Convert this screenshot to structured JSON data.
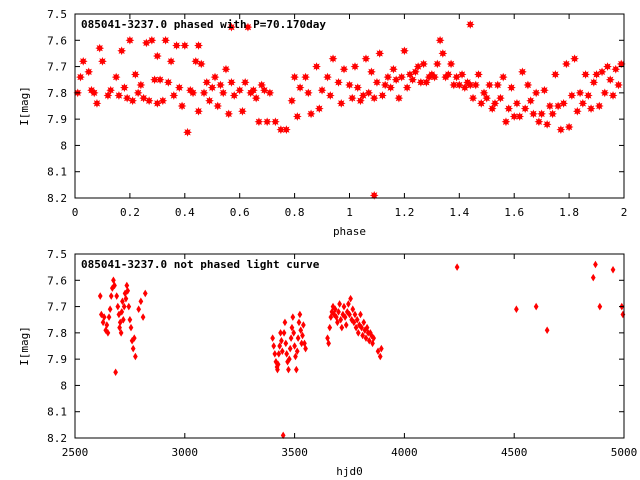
{
  "chart_data": [
    {
      "type": "scatter",
      "title": "085041-3237.0 phased with P=70.170day",
      "xlabel": "phase",
      "ylabel": "I[mag]",
      "xlim": [
        0,
        2
      ],
      "ylim": [
        8.2,
        7.5
      ],
      "y_inverted": true,
      "grid": false,
      "marker_color": "#ff0000",
      "marker": "star",
      "x_ticks": [
        "0",
        "0.2",
        "0.4",
        "0.6",
        "0.8",
        "1",
        "1.2",
        "1.4",
        "1.6",
        "1.8",
        "2"
      ],
      "y_ticks": [
        "7.5",
        "7.6",
        "7.7",
        "7.8",
        "7.9",
        "8",
        "8.1",
        "8.2"
      ],
      "points": [
        [
          0.01,
          7.8
        ],
        [
          0.02,
          7.74
        ],
        [
          0.03,
          7.68
        ],
        [
          0.05,
          7.72
        ],
        [
          0.06,
          7.79
        ],
        [
          0.07,
          7.8
        ],
        [
          0.08,
          7.84
        ],
        [
          0.09,
          7.63
        ],
        [
          0.1,
          7.68
        ],
        [
          0.12,
          7.81
        ],
        [
          0.13,
          7.79
        ],
        [
          0.15,
          7.74
        ],
        [
          0.16,
          7.81
        ],
        [
          0.17,
          7.64
        ],
        [
          0.18,
          7.78
        ],
        [
          0.19,
          7.82
        ],
        [
          0.2,
          7.6
        ],
        [
          0.21,
          7.83
        ],
        [
          0.22,
          7.73
        ],
        [
          0.23,
          7.8
        ],
        [
          0.24,
          7.77
        ],
        [
          0.25,
          7.82
        ],
        [
          0.26,
          7.61
        ],
        [
          0.27,
          7.83
        ],
        [
          0.28,
          7.6
        ],
        [
          0.29,
          7.75
        ],
        [
          0.3,
          7.84
        ],
        [
          0.3,
          7.66
        ],
        [
          0.31,
          7.75
        ],
        [
          0.32,
          7.83
        ],
        [
          0.33,
          7.6
        ],
        [
          0.34,
          7.76
        ],
        [
          0.35,
          7.68
        ],
        [
          0.36,
          7.81
        ],
        [
          0.37,
          7.62
        ],
        [
          0.38,
          7.78
        ],
        [
          0.39,
          7.85
        ],
        [
          0.4,
          7.62
        ],
        [
          0.41,
          7.95
        ],
        [
          0.42,
          7.79
        ],
        [
          0.43,
          7.8
        ],
        [
          0.44,
          7.68
        ],
        [
          0.45,
          7.87
        ],
        [
          0.45,
          7.62
        ],
        [
          0.46,
          7.69
        ],
        [
          0.47,
          7.8
        ],
        [
          0.48,
          7.76
        ],
        [
          0.49,
          7.83
        ],
        [
          0.5,
          7.78
        ],
        [
          0.51,
          7.74
        ],
        [
          0.52,
          7.85
        ],
        [
          0.53,
          7.77
        ],
        [
          0.54,
          7.8
        ],
        [
          0.55,
          7.71
        ],
        [
          0.56,
          7.88
        ],
        [
          0.57,
          7.76
        ],
        [
          0.57,
          7.55
        ],
        [
          0.58,
          7.81
        ],
        [
          0.6,
          7.79
        ],
        [
          0.61,
          7.87
        ],
        [
          0.62,
          7.76
        ],
        [
          0.63,
          7.55
        ],
        [
          0.64,
          7.8
        ],
        [
          0.65,
          7.79
        ],
        [
          0.66,
          7.82
        ],
        [
          0.67,
          7.91
        ],
        [
          0.68,
          7.77
        ],
        [
          0.69,
          7.79
        ],
        [
          0.7,
          7.91
        ],
        [
          0.71,
          7.8
        ],
        [
          0.73,
          7.91
        ],
        [
          0.75,
          7.94
        ],
        [
          0.77,
          7.94
        ],
        [
          0.79,
          7.83
        ],
        [
          0.8,
          7.74
        ],
        [
          0.81,
          7.89
        ],
        [
          0.82,
          7.78
        ],
        [
          0.84,
          7.74
        ],
        [
          0.85,
          7.8
        ],
        [
          0.86,
          7.88
        ],
        [
          0.88,
          7.7
        ],
        [
          0.89,
          7.86
        ],
        [
          0.9,
          7.79
        ],
        [
          0.92,
          7.74
        ],
        [
          0.93,
          7.81
        ],
        [
          0.94,
          7.67
        ],
        [
          0.96,
          7.76
        ],
        [
          0.97,
          7.84
        ],
        [
          0.98,
          7.71
        ],
        [
          1.0,
          7.77
        ],
        [
          1.01,
          7.82
        ],
        [
          1.02,
          7.7
        ],
        [
          1.03,
          7.78
        ],
        [
          1.04,
          7.83
        ],
        [
          1.05,
          7.81
        ],
        [
          1.06,
          7.67
        ],
        [
          1.07,
          7.8
        ],
        [
          1.08,
          7.72
        ],
        [
          1.09,
          7.82
        ],
        [
          1.09,
          8.19
        ],
        [
          1.1,
          7.76
        ],
        [
          1.11,
          7.65
        ],
        [
          1.12,
          7.81
        ],
        [
          1.13,
          7.77
        ],
        [
          1.14,
          7.74
        ],
        [
          1.15,
          7.78
        ],
        [
          1.16,
          7.71
        ],
        [
          1.17,
          7.75
        ],
        [
          1.18,
          7.82
        ],
        [
          1.19,
          7.74
        ],
        [
          1.2,
          7.64
        ],
        [
          1.21,
          7.78
        ],
        [
          1.22,
          7.73
        ],
        [
          1.23,
          7.75
        ],
        [
          1.24,
          7.72
        ],
        [
          1.25,
          7.7
        ],
        [
          1.26,
          7.76
        ],
        [
          1.27,
          7.69
        ],
        [
          1.28,
          7.76
        ],
        [
          1.29,
          7.74
        ],
        [
          1.3,
          7.73
        ],
        [
          1.31,
          7.74
        ],
        [
          1.32,
          7.69
        ],
        [
          1.33,
          7.6
        ],
        [
          1.34,
          7.65
        ],
        [
          1.35,
          7.74
        ],
        [
          1.36,
          7.73
        ],
        [
          1.37,
          7.69
        ],
        [
          1.38,
          7.77
        ],
        [
          1.39,
          7.74
        ],
        [
          1.4,
          7.77
        ],
        [
          1.41,
          7.73
        ],
        [
          1.42,
          7.78
        ],
        [
          1.43,
          7.76
        ],
        [
          1.44,
          7.77
        ],
        [
          1.44,
          7.54
        ],
        [
          1.45,
          7.82
        ],
        [
          1.46,
          7.77
        ],
        [
          1.47,
          7.73
        ],
        [
          1.48,
          7.84
        ],
        [
          1.49,
          7.8
        ],
        [
          1.5,
          7.82
        ],
        [
          1.51,
          7.77
        ],
        [
          1.52,
          7.86
        ],
        [
          1.53,
          7.84
        ],
        [
          1.54,
          7.77
        ],
        [
          1.55,
          7.82
        ],
        [
          1.56,
          7.74
        ],
        [
          1.57,
          7.91
        ],
        [
          1.58,
          7.86
        ],
        [
          1.59,
          7.78
        ],
        [
          1.6,
          7.89
        ],
        [
          1.61,
          7.84
        ],
        [
          1.62,
          7.89
        ],
        [
          1.63,
          7.72
        ],
        [
          1.64,
          7.86
        ],
        [
          1.65,
          7.77
        ],
        [
          1.66,
          7.83
        ],
        [
          1.67,
          7.88
        ],
        [
          1.68,
          7.8
        ],
        [
          1.69,
          7.91
        ],
        [
          1.7,
          7.88
        ],
        [
          1.71,
          7.79
        ],
        [
          1.72,
          7.92
        ],
        [
          1.73,
          7.85
        ],
        [
          1.74,
          7.88
        ],
        [
          1.75,
          7.73
        ],
        [
          1.76,
          7.85
        ],
        [
          1.77,
          7.94
        ],
        [
          1.78,
          7.84
        ],
        [
          1.79,
          7.69
        ],
        [
          1.8,
          7.93
        ],
        [
          1.81,
          7.81
        ],
        [
          1.82,
          7.67
        ],
        [
          1.83,
          7.87
        ],
        [
          1.84,
          7.8
        ],
        [
          1.85,
          7.84
        ],
        [
          1.86,
          7.73
        ],
        [
          1.87,
          7.81
        ],
        [
          1.88,
          7.86
        ],
        [
          1.89,
          7.76
        ],
        [
          1.9,
          7.73
        ],
        [
          1.91,
          7.85
        ],
        [
          1.92,
          7.72
        ],
        [
          1.93,
          7.8
        ],
        [
          1.94,
          7.7
        ],
        [
          1.95,
          7.75
        ],
        [
          1.96,
          7.81
        ],
        [
          1.97,
          7.71
        ],
        [
          1.98,
          7.77
        ],
        [
          1.99,
          7.69
        ]
      ]
    },
    {
      "type": "scatter",
      "title": "085041-3237.0 not phased light curve",
      "xlabel": "hjd0",
      "ylabel": "I[mag]",
      "xlim": [
        2500,
        5000
      ],
      "ylim": [
        8.2,
        7.5
      ],
      "y_inverted": true,
      "grid": false,
      "marker_color": "#ff0000",
      "marker": "diamond",
      "x_ticks": [
        "2500",
        "3000",
        "3500",
        "4000",
        "4500",
        "5000"
      ],
      "y_ticks": [
        "7.5",
        "7.6",
        "7.7",
        "7.8",
        "7.9",
        "8",
        "8.1",
        "8.2"
      ],
      "points": [
        [
          2615,
          7.66
        ],
        [
          2620,
          7.73
        ],
        [
          2628,
          7.76
        ],
        [
          2633,
          7.74
        ],
        [
          2640,
          7.79
        ],
        [
          2645,
          7.77
        ],
        [
          2650,
          7.8
        ],
        [
          2655,
          7.74
        ],
        [
          2660,
          7.71
        ],
        [
          2665,
          7.66
        ],
        [
          2670,
          7.63
        ],
        [
          2675,
          7.6
        ],
        [
          2680,
          7.62
        ],
        [
          2685,
          7.95
        ],
        [
          2690,
          7.66
        ],
        [
          2695,
          7.7
        ],
        [
          2700,
          7.73
        ],
        [
          2703,
          7.78
        ],
        [
          2706,
          7.76
        ],
        [
          2710,
          7.8
        ],
        [
          2713,
          7.72
        ],
        [
          2716,
          7.68
        ],
        [
          2720,
          7.75
        ],
        [
          2724,
          7.7
        ],
        [
          2728,
          7.65
        ],
        [
          2732,
          7.67
        ],
        [
          2736,
          7.62
        ],
        [
          2740,
          7.64
        ],
        [
          2745,
          7.7
        ],
        [
          2750,
          7.75
        ],
        [
          2755,
          7.78
        ],
        [
          2760,
          7.83
        ],
        [
          2765,
          7.86
        ],
        [
          2770,
          7.82
        ],
        [
          2775,
          7.89
        ],
        [
          2790,
          7.71
        ],
        [
          2800,
          7.68
        ],
        [
          2810,
          7.74
        ],
        [
          2820,
          7.65
        ],
        [
          3400,
          7.82
        ],
        [
          3405,
          7.85
        ],
        [
          3410,
          7.88
        ],
        [
          3415,
          7.91
        ],
        [
          3420,
          7.93
        ],
        [
          3422,
          7.94
        ],
        [
          3425,
          7.92
        ],
        [
          3428,
          7.88
        ],
        [
          3432,
          7.85
        ],
        [
          3436,
          7.8
        ],
        [
          3440,
          7.83
        ],
        [
          3444,
          7.87
        ],
        [
          3448,
          8.19
        ],
        [
          3452,
          7.8
        ],
        [
          3456,
          7.76
        ],
        [
          3460,
          7.84
        ],
        [
          3464,
          7.88
        ],
        [
          3468,
          7.91
        ],
        [
          3472,
          7.94
        ],
        [
          3476,
          7.9
        ],
        [
          3480,
          7.86
        ],
        [
          3484,
          7.82
        ],
        [
          3488,
          7.78
        ],
        [
          3492,
          7.74
        ],
        [
          3496,
          7.8
        ],
        [
          3500,
          7.85
        ],
        [
          3504,
          7.89
        ],
        [
          3508,
          7.94
        ],
        [
          3512,
          7.87
        ],
        [
          3516,
          7.82
        ],
        [
          3520,
          7.76
        ],
        [
          3524,
          7.73
        ],
        [
          3528,
          7.79
        ],
        [
          3532,
          7.84
        ],
        [
          3536,
          7.81
        ],
        [
          3540,
          7.77
        ],
        [
          3545,
          7.84
        ],
        [
          3550,
          7.86
        ],
        [
          3650,
          7.82
        ],
        [
          3655,
          7.84
        ],
        [
          3660,
          7.78
        ],
        [
          3665,
          7.74
        ],
        [
          3670,
          7.72
        ],
        [
          3675,
          7.7
        ],
        [
          3680,
          7.73
        ],
        [
          3685,
          7.71
        ],
        [
          3690,
          7.74
        ],
        [
          3695,
          7.76
        ],
        [
          3700,
          7.72
        ],
        [
          3705,
          7.69
        ],
        [
          3710,
          7.75
        ],
        [
          3715,
          7.78
        ],
        [
          3720,
          7.73
        ],
        [
          3725,
          7.7
        ],
        [
          3730,
          7.74
        ],
        [
          3735,
          7.77
        ],
        [
          3740,
          7.72
        ],
        [
          3745,
          7.69
        ],
        [
          3750,
          7.73
        ],
        [
          3755,
          7.67
        ],
        [
          3760,
          7.75
        ],
        [
          3765,
          7.71
        ],
        [
          3770,
          7.76
        ],
        [
          3775,
          7.73
        ],
        [
          3780,
          7.78
        ],
        [
          3785,
          7.75
        ],
        [
          3790,
          7.8
        ],
        [
          3795,
          7.77
        ],
        [
          3800,
          7.73
        ],
        [
          3805,
          7.78
        ],
        [
          3810,
          7.81
        ],
        [
          3815,
          7.76
        ],
        [
          3820,
          7.79
        ],
        [
          3825,
          7.82
        ],
        [
          3830,
          7.78
        ],
        [
          3835,
          7.8
        ],
        [
          3840,
          7.83
        ],
        [
          3845,
          7.8
        ],
        [
          3850,
          7.81
        ],
        [
          3855,
          7.84
        ],
        [
          3860,
          7.82
        ],
        [
          3880,
          7.87
        ],
        [
          3890,
          7.89
        ],
        [
          3895,
          7.86
        ],
        [
          4240,
          7.55
        ],
        [
          4510,
          7.71
        ],
        [
          4600,
          7.7
        ],
        [
          4650,
          7.79
        ],
        [
          4860,
          7.59
        ],
        [
          4870,
          7.54
        ],
        [
          4890,
          7.7
        ],
        [
          4950,
          7.56
        ],
        [
          4990,
          7.7
        ],
        [
          4995,
          7.73
        ]
      ]
    }
  ]
}
